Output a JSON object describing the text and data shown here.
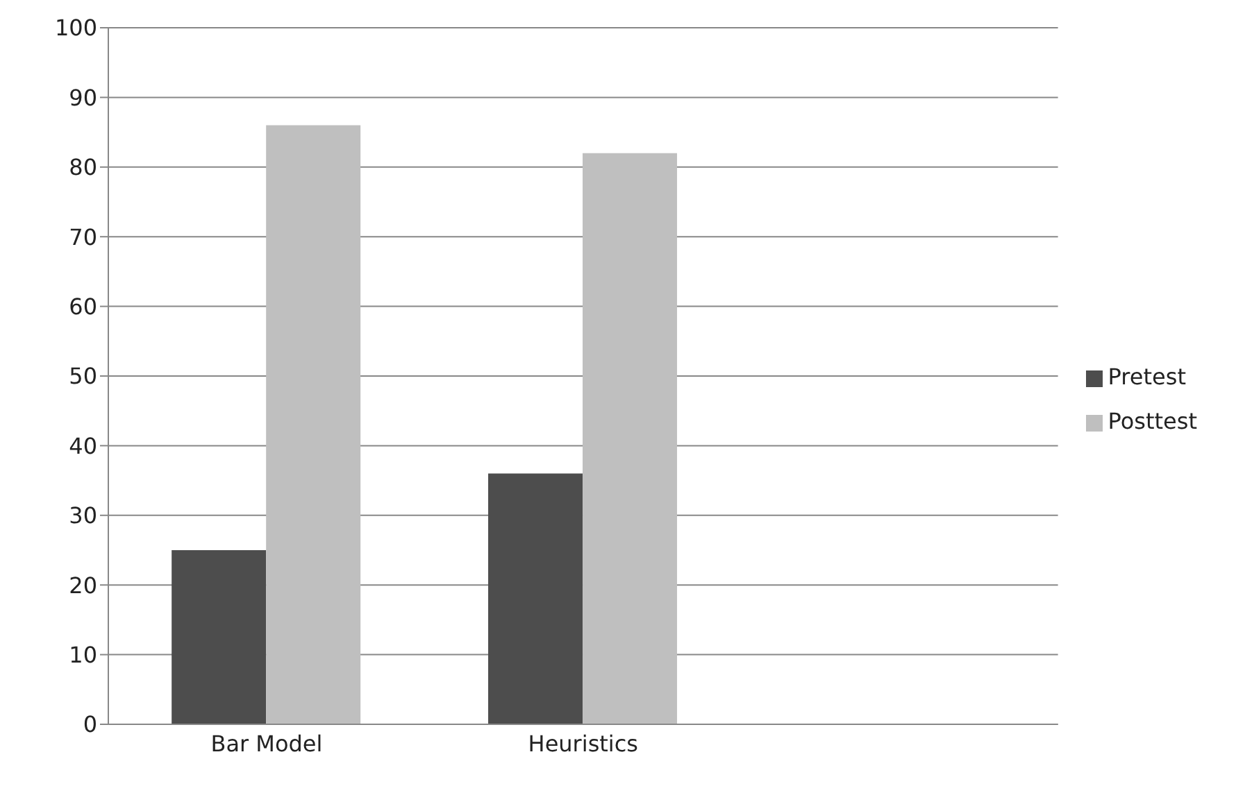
{
  "chart_data": {
    "type": "bar",
    "categories": [
      "Bar Model",
      "Heuristics",
      null
    ],
    "series": [
      {
        "name": "Pretest",
        "color": "#4d4d4d",
        "values": [
          25,
          36,
          null
        ]
      },
      {
        "name": "Posttest",
        "color": "#bfbfbf",
        "values": [
          86,
          82,
          null
        ]
      }
    ],
    "ylim": [
      0,
      100
    ],
    "yticks": [
      0,
      10,
      20,
      30,
      40,
      50,
      60,
      70,
      80,
      90,
      100
    ],
    "grid": "y",
    "legend": "right"
  }
}
